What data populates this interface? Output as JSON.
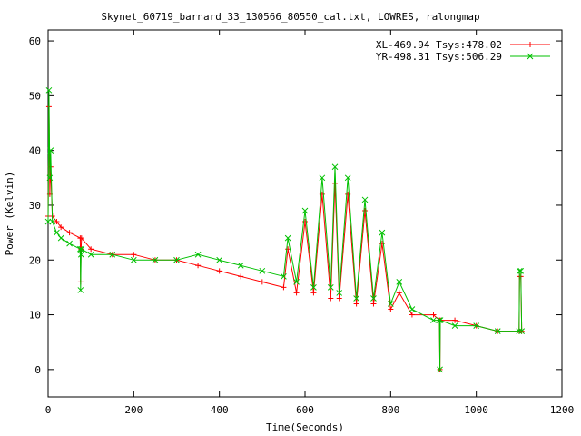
{
  "chart_data": {
    "type": "line",
    "title": "Skynet_60719_barnard_33_130566_80550_cal.txt, LOWRES, ralongmap",
    "xlabel": "Time(Seconds)",
    "ylabel": "Power (Kelvin)",
    "xlim": [
      0,
      1200
    ],
    "ylim": [
      -5,
      62
    ],
    "xticks": [
      0,
      200,
      400,
      600,
      800,
      1000,
      1200
    ],
    "yticks": [
      0,
      10,
      20,
      30,
      40,
      50,
      60
    ],
    "grid": false,
    "legend_position": "top-right",
    "series": [
      {
        "name": "XL-469.94 Tsys:478.02",
        "color": "#ff0000",
        "marker": "plus",
        "x": [
          0,
          2,
          4,
          6,
          10,
          20,
          30,
          50,
          75,
          76,
          77,
          78,
          100,
          150,
          200,
          250,
          300,
          350,
          400,
          450,
          500,
          550,
          560,
          580,
          600,
          620,
          640,
          660,
          670,
          680,
          700,
          720,
          740,
          760,
          780,
          800,
          820,
          850,
          900,
          914,
          915,
          916,
          950,
          1000,
          1050,
          1100,
          1101,
          1104,
          1106
        ],
        "y": [
          28,
          48,
          32,
          37,
          28,
          27,
          26,
          25,
          24,
          16,
          22,
          24,
          22,
          21,
          21,
          20,
          20,
          19,
          18,
          17,
          16,
          15,
          22,
          14,
          27,
          14,
          32,
          13,
          34,
          13,
          32,
          12,
          29,
          12,
          23,
          11,
          14,
          10,
          10,
          9,
          0,
          9,
          9,
          8,
          7,
          7,
          17,
          17,
          7
        ]
      },
      {
        "name": "YR-498.31 Tsys:506.29",
        "color": "#00c000",
        "marker": "cross",
        "x": [
          0,
          2,
          4,
          6,
          10,
          20,
          30,
          50,
          75,
          76,
          77,
          78,
          100,
          150,
          200,
          250,
          300,
          350,
          400,
          450,
          500,
          550,
          560,
          580,
          600,
          620,
          640,
          660,
          670,
          680,
          700,
          720,
          740,
          760,
          780,
          800,
          820,
          850,
          900,
          914,
          915,
          916,
          950,
          1000,
          1050,
          1100,
          1101,
          1104,
          1106
        ],
        "y": [
          27,
          51,
          35,
          40,
          27,
          25,
          24,
          23,
          22,
          14.5,
          21,
          22,
          21,
          21,
          20,
          20,
          20,
          21,
          20,
          19,
          18,
          17,
          24,
          16,
          29,
          15,
          35,
          15,
          37,
          14,
          35,
          13,
          31,
          13,
          25,
          12,
          16,
          11,
          9,
          9,
          0,
          9,
          8,
          8,
          7,
          7,
          18,
          18,
          7
        ]
      }
    ]
  }
}
